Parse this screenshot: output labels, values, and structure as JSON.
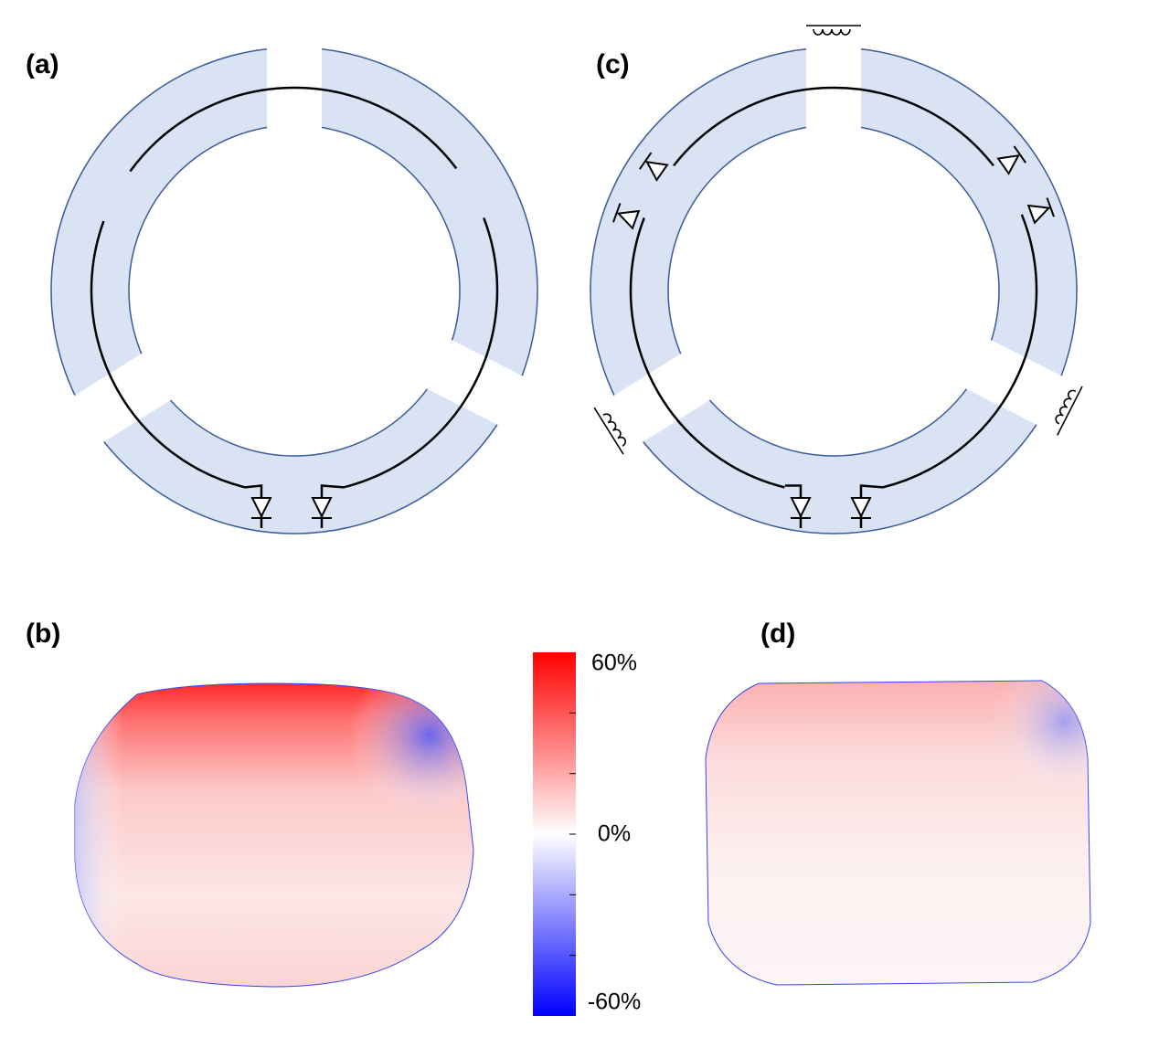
{
  "panel_labels": [
    "(a)",
    "(b)",
    "(c)",
    "(d)"
  ],
  "colorbar": {
    "lim": [
      -60,
      60
    ],
    "ticks": [
      {
        "value": 60,
        "label": "60%"
      },
      40,
      20,
      {
        "value": 0,
        "label": "0%"
      },
      -20,
      -40,
      {
        "value": -60,
        "label": "-60%"
      }
    ]
  }
}
